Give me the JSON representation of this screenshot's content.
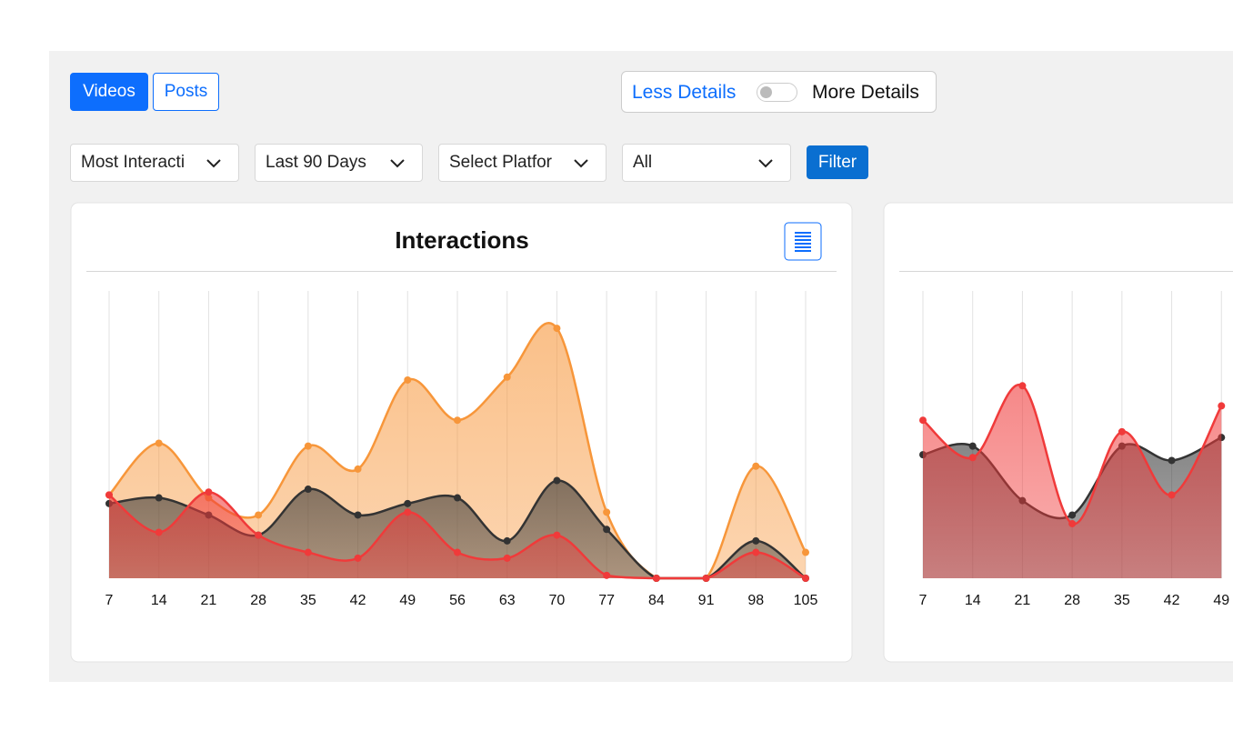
{
  "tabs": [
    "Videos",
    "Posts"
  ],
  "toggle": {
    "left": "Less Details",
    "right": "More Details"
  },
  "filters": [
    "Most Interacti",
    "Last 90 Days",
    "Select Platfor",
    "All"
  ],
  "filter_button": "Filter",
  "chart_data": [
    {
      "type": "area",
      "title": "Interactions",
      "x": [
        7,
        14,
        21,
        28,
        35,
        42,
        49,
        56,
        63,
        70,
        77,
        84,
        91,
        98,
        105
      ],
      "ylim": [
        0,
        100
      ],
      "grid": true,
      "series": [
        {
          "color": "#f7963a",
          "values": [
            29,
            47,
            28,
            22,
            46,
            38,
            69,
            55,
            70,
            87,
            23,
            0,
            0,
            39,
            9
          ]
        },
        {
          "color": "#333333",
          "values": [
            26,
            28,
            22,
            15,
            31,
            22,
            26,
            28,
            13,
            34,
            17,
            0,
            0,
            13,
            0
          ]
        },
        {
          "color": "#f03a3a",
          "values": [
            29,
            16,
            30,
            15,
            9,
            7,
            23,
            9,
            7,
            15,
            1,
            0,
            0,
            9,
            0
          ]
        }
      ]
    },
    {
      "type": "area",
      "x": [
        7,
        14,
        21,
        28,
        35,
        42,
        49
      ],
      "ylim": [
        0,
        100
      ],
      "grid": true,
      "series": [
        {
          "color": "#333333",
          "values": [
            43,
            46,
            27,
            22,
            46,
            41,
            49
          ]
        },
        {
          "color": "#f03a3a",
          "values": [
            55,
            42,
            67,
            19,
            51,
            29,
            60
          ]
        }
      ]
    }
  ]
}
